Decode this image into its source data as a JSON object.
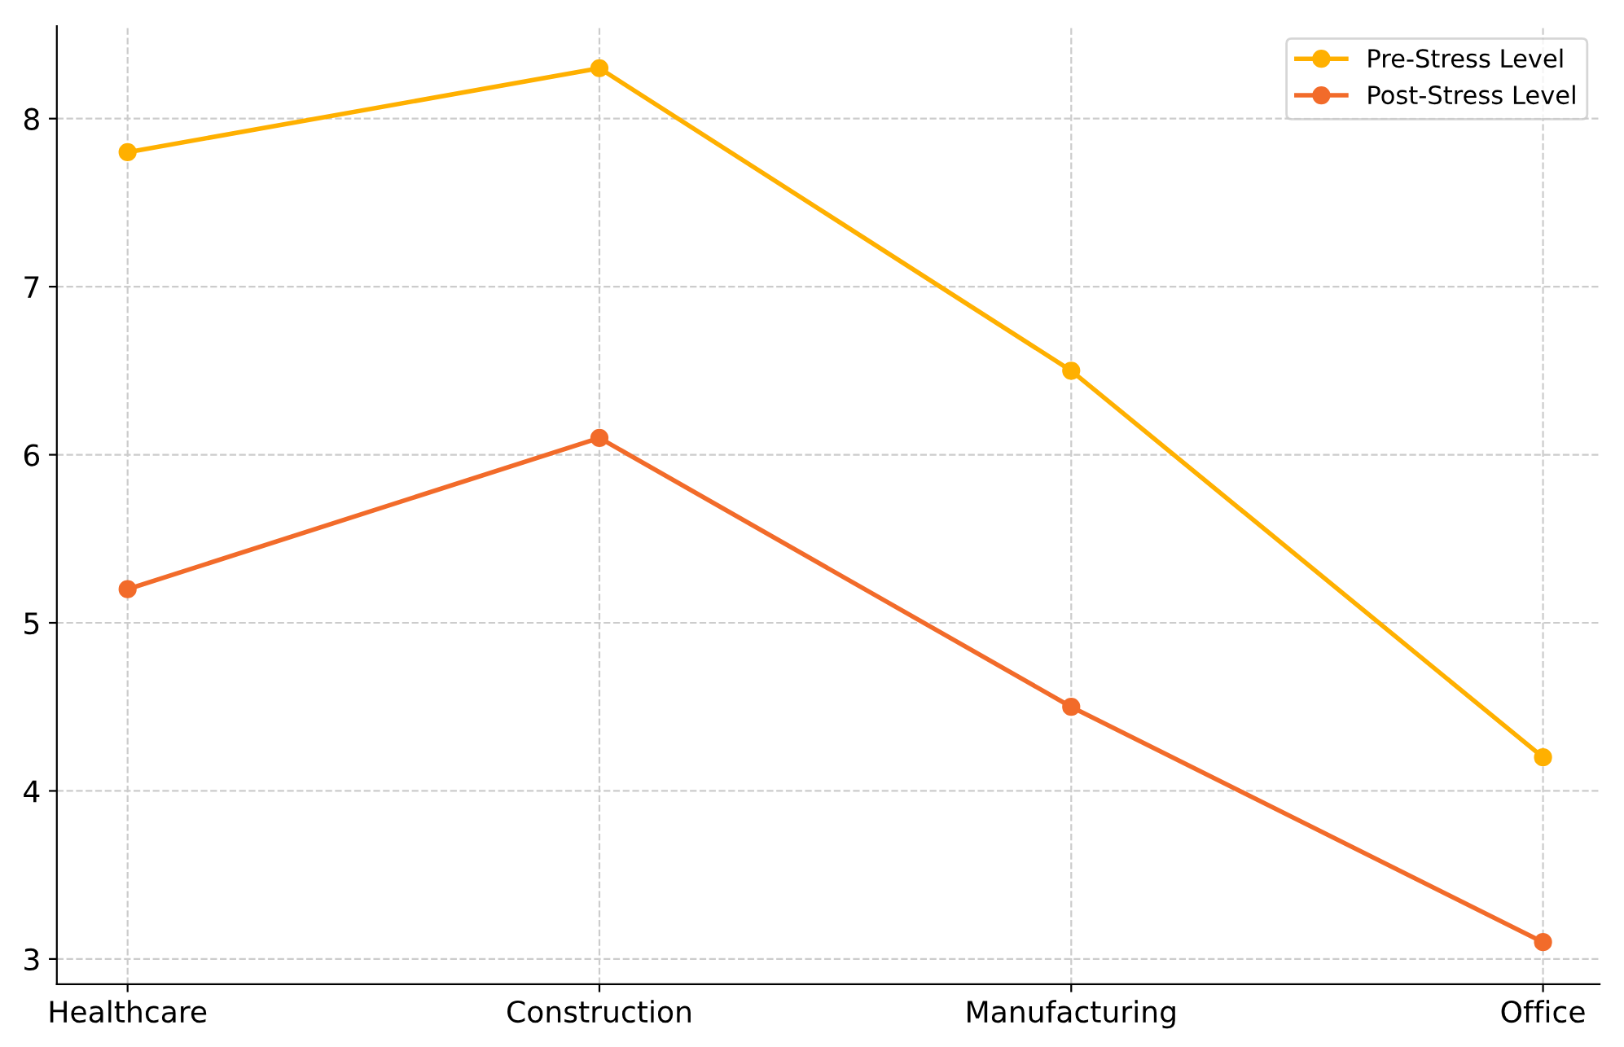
{
  "chart_data": {
    "type": "line",
    "categories": [
      "Healthcare",
      "Construction",
      "Manufacturing",
      "Office"
    ],
    "series": [
      {
        "name": "Pre-Stress Level",
        "color": "#ffb000",
        "values": [
          7.8,
          8.3,
          6.5,
          4.2
        ]
      },
      {
        "name": "Post-Stress Level",
        "color": "#f26b2a",
        "values": [
          5.2,
          6.1,
          4.5,
          3.1
        ]
      }
    ],
    "ylim": [
      2.85,
      8.55
    ],
    "yticks": [
      3,
      4,
      5,
      6,
      7,
      8
    ],
    "grid": true,
    "legend": "top right",
    "marker": "circle",
    "line_style": "solid"
  }
}
